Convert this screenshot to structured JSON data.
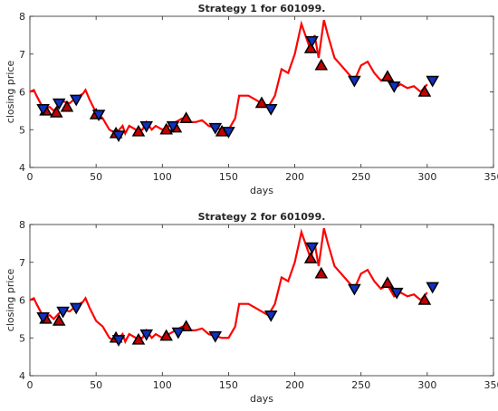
{
  "chart_data": [
    {
      "type": "line",
      "title": "Strategy 1 for 601099.",
      "xlabel": "days",
      "ylabel": "closing price",
      "xlim": [
        0,
        350
      ],
      "xticks": [
        0,
        50,
        100,
        150,
        200,
        250,
        300,
        350
      ],
      "ylim": [
        4,
        8
      ],
      "yticks": [
        4,
        5,
        6,
        7,
        8
      ],
      "series": [
        {
          "type": "line",
          "color": "#ff0000",
          "x": [
            0,
            3,
            5,
            8,
            10,
            15,
            18,
            22,
            25,
            30,
            35,
            40,
            42,
            45,
            50,
            55,
            60,
            65,
            70,
            72,
            75,
            80,
            85,
            88,
            92,
            95,
            100,
            105,
            110,
            115,
            120,
            125,
            130,
            135,
            140,
            145,
            150,
            155,
            158,
            165,
            170,
            175,
            180,
            185,
            190,
            195,
            200,
            205,
            208,
            212,
            215,
            218,
            222,
            225,
            230,
            235,
            240,
            245,
            250,
            255,
            260,
            265,
            270,
            275,
            280,
            285,
            290,
            295,
            300
          ],
          "values": [
            6.0,
            6.05,
            5.9,
            5.7,
            5.55,
            5.6,
            5.5,
            5.65,
            5.75,
            5.7,
            5.85,
            5.95,
            6.05,
            5.8,
            5.45,
            5.3,
            5.0,
            4.9,
            5.1,
            4.9,
            5.1,
            5.0,
            5.0,
            5.2,
            5.0,
            5.1,
            5.0,
            5.1,
            5.2,
            5.3,
            5.2,
            5.2,
            5.25,
            5.1,
            5.05,
            5.0,
            5.0,
            5.3,
            5.9,
            5.9,
            5.8,
            5.7,
            5.6,
            5.9,
            6.6,
            6.5,
            7.0,
            7.8,
            7.5,
            7.1,
            7.5,
            6.9,
            7.9,
            7.5,
            6.9,
            6.7,
            6.5,
            6.3,
            6.7,
            6.8,
            6.5,
            6.3,
            6.4,
            6.1,
            6.2,
            6.1,
            6.15,
            6.0,
            6.2
          ]
        },
        {
          "type": "scatter",
          "marker": "up",
          "color": "#c00000",
          "x": [
            12,
            20,
            28,
            50,
            65,
            82,
            103,
            110,
            118,
            145,
            175,
            212,
            220,
            270,
            298
          ],
          "values": [
            5.5,
            5.45,
            5.6,
            5.4,
            4.9,
            4.95,
            5.0,
            5.05,
            5.3,
            4.95,
            5.7,
            7.15,
            6.7,
            6.4,
            6.0
          ]
        },
        {
          "type": "scatter",
          "marker": "down",
          "color": "#1030c0",
          "x": [
            10,
            22,
            35,
            52,
            67,
            88,
            108,
            140,
            150,
            182,
            213,
            245,
            275,
            304
          ],
          "values": [
            5.55,
            5.7,
            5.8,
            5.4,
            4.85,
            5.1,
            5.1,
            5.05,
            4.95,
            5.55,
            7.35,
            6.3,
            6.15,
            6.3
          ]
        }
      ]
    },
    {
      "type": "line",
      "title": "Strategy 2 for 601099.",
      "xlabel": "days",
      "ylabel": "closing price",
      "xlim": [
        0,
        350
      ],
      "xticks": [
        0,
        50,
        100,
        150,
        200,
        250,
        300,
        350
      ],
      "ylim": [
        4,
        8
      ],
      "yticks": [
        4,
        5,
        6,
        7,
        8
      ],
      "series": [
        {
          "type": "line",
          "color": "#ff0000",
          "x": [
            0,
            3,
            5,
            8,
            10,
            15,
            18,
            22,
            25,
            30,
            35,
            40,
            42,
            45,
            50,
            55,
            60,
            65,
            70,
            72,
            75,
            80,
            85,
            88,
            92,
            95,
            100,
            105,
            110,
            115,
            120,
            125,
            130,
            135,
            140,
            145,
            150,
            155,
            158,
            165,
            170,
            175,
            180,
            185,
            190,
            195,
            200,
            205,
            208,
            212,
            215,
            218,
            222,
            225,
            230,
            235,
            240,
            245,
            250,
            255,
            260,
            265,
            270,
            275,
            280,
            285,
            290,
            295,
            300
          ],
          "values": [
            6.0,
            6.05,
            5.9,
            5.7,
            5.55,
            5.6,
            5.5,
            5.65,
            5.75,
            5.7,
            5.85,
            5.95,
            6.05,
            5.8,
            5.45,
            5.3,
            5.0,
            4.9,
            5.1,
            4.9,
            5.1,
            5.0,
            5.0,
            5.2,
            5.0,
            5.1,
            5.0,
            5.1,
            5.2,
            5.3,
            5.2,
            5.2,
            5.25,
            5.1,
            5.05,
            5.0,
            5.0,
            5.3,
            5.9,
            5.9,
            5.8,
            5.7,
            5.6,
            5.9,
            6.6,
            6.5,
            7.0,
            7.8,
            7.5,
            7.1,
            7.5,
            6.9,
            7.9,
            7.5,
            6.9,
            6.7,
            6.5,
            6.3,
            6.7,
            6.8,
            6.5,
            6.3,
            6.4,
            6.1,
            6.2,
            6.1,
            6.15,
            6.0,
            6.2
          ]
        },
        {
          "type": "scatter",
          "marker": "up",
          "color": "#c00000",
          "x": [
            12,
            22,
            65,
            82,
            103,
            118,
            212,
            220,
            270,
            298
          ],
          "values": [
            5.5,
            5.45,
            5.0,
            4.95,
            5.05,
            5.3,
            7.1,
            6.7,
            6.45,
            6.0
          ]
        },
        {
          "type": "scatter",
          "marker": "down",
          "color": "#1030c0",
          "x": [
            10,
            25,
            35,
            67,
            88,
            112,
            140,
            182,
            213,
            245,
            277,
            304
          ],
          "values": [
            5.55,
            5.7,
            5.8,
            4.95,
            5.1,
            5.15,
            5.05,
            5.6,
            7.4,
            6.3,
            6.2,
            6.35
          ]
        }
      ]
    }
  ]
}
